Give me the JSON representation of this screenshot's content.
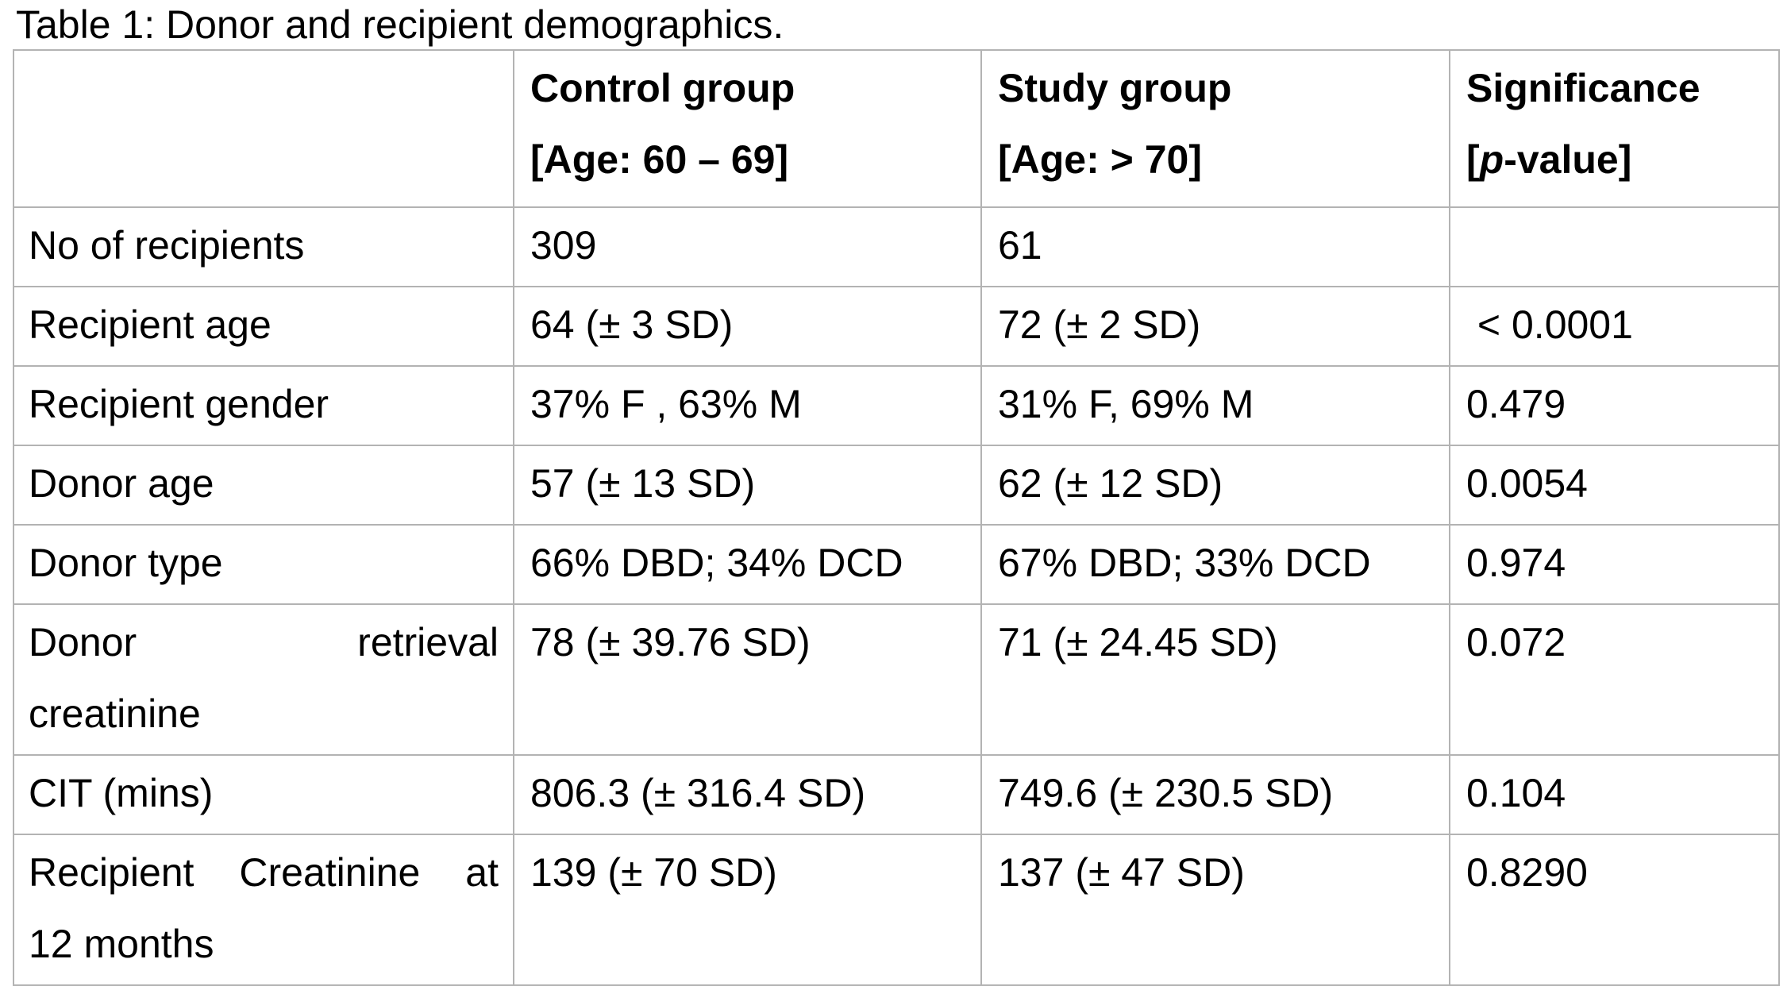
{
  "page": {
    "title": "Table 1: Donor and recipient demographics."
  },
  "colors": {
    "text": "#000000",
    "border": "#b3b3b3",
    "background": "#ffffff"
  },
  "table": {
    "header": {
      "row_label_column": "",
      "control": {
        "line1": "Control group",
        "line2": "[Age: 60 – 69]"
      },
      "study": {
        "line1": "Study group",
        "line2": "[Age: > 70]"
      },
      "significance": {
        "line1": "Significance",
        "line2_prefix": "[",
        "line2_italic": "p",
        "line2_suffix": "-value]"
      }
    },
    "rows": [
      {
        "label": [
          "No of recipients"
        ],
        "control": "309",
        "study": "61",
        "p": ""
      },
      {
        "label": [
          "Recipient age"
        ],
        "control": "64 (± 3 SD)",
        "study": "72 (± 2 SD)",
        "p": " < 0.0001"
      },
      {
        "label": [
          "Recipient gender"
        ],
        "control": "37% F , 63% M",
        "study": "31% F, 69% M",
        "p": "0.479"
      },
      {
        "label": [
          "Donor age"
        ],
        "control": "57 (± 13 SD)",
        "study": "62 (± 12 SD)",
        "p": "0.0054"
      },
      {
        "label": [
          "Donor type"
        ],
        "control": "66% DBD; 34% DCD",
        "study": "67% DBD; 33% DCD",
        "p": "0.974"
      },
      {
        "label": [
          "Donor retrieval",
          "creatinine"
        ],
        "control": "78 (± 39.76 SD)",
        "study": "71 (± 24.45 SD)",
        "p": "0.072"
      },
      {
        "label": [
          "CIT (mins)"
        ],
        "control": "806.3 (± 316.4 SD)",
        "study": "749.6 (± 230.5 SD)",
        "p": "0.104"
      },
      {
        "label": [
          "Recipient Creatinine at",
          "12 months"
        ],
        "control": "139 (± 70 SD)",
        "study": "137 (± 47 SD)",
        "p": "0.8290"
      }
    ]
  }
}
